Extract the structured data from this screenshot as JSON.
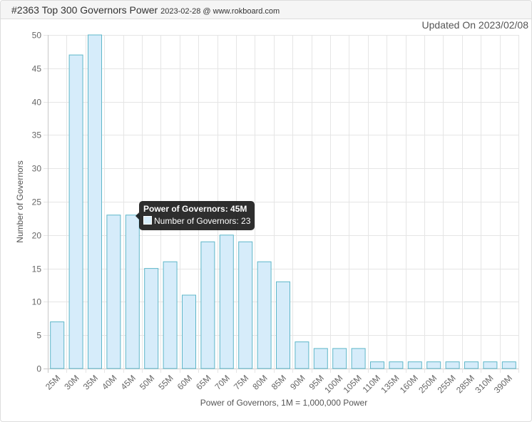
{
  "header": {
    "title": "#2363 Top 300 Governors Power",
    "subtitle": "2023-02-28 @ www.rokboard.com",
    "updated": "Updated On 2023/02/08"
  },
  "tooltip": {
    "title": "Power of Governors: 45M",
    "label": "Number of Governors: 23"
  },
  "colors": {
    "bar_fill": "#d6ecfa",
    "bar_stroke": "#5fb7c9",
    "grid": "#e5e5e5"
  },
  "chart_data": {
    "type": "bar",
    "xlabel": "Power of Governors, 1M = 1,000,000 Power",
    "ylabel": "Number of Governors",
    "ylim": [
      0,
      50
    ],
    "yticks": [
      0,
      5,
      10,
      15,
      20,
      25,
      30,
      35,
      40,
      45,
      50
    ],
    "grid": true,
    "categories": [
      "25M",
      "30M",
      "35M",
      "40M",
      "45M",
      "50M",
      "55M",
      "60M",
      "65M",
      "70M",
      "75M",
      "80M",
      "85M",
      "90M",
      "95M",
      "100M",
      "105M",
      "110M",
      "135M",
      "160M",
      "250M",
      "255M",
      "285M",
      "310M",
      "390M"
    ],
    "series": [
      {
        "name": "Number of Governors",
        "values": [
          7,
          47,
          50,
          23,
          23,
          15,
          16,
          11,
          19,
          20,
          19,
          16,
          13,
          4,
          3,
          3,
          3,
          1,
          1,
          1,
          1,
          1,
          1,
          1,
          1
        ]
      }
    ]
  }
}
